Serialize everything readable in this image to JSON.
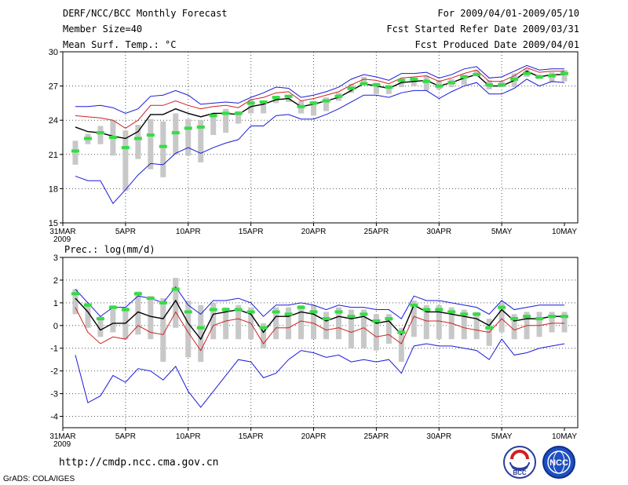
{
  "header": {
    "left": [
      "DERF/NCC/BCC Monthly Forecast",
      "Member Size=40",
      "Mean Surf. Temp.: °C"
    ],
    "right": [
      "For 2009/04/01-2009/05/10",
      "Fcst Started Refer Date 2009/03/31",
      "Fcst Produced Date 2009/04/01"
    ]
  },
  "footer": {
    "url": "http://cmdp.ncc.cma.gov.cn",
    "credit": "GrADS: COLA/IGES"
  },
  "logos": {
    "bcc": "BCC",
    "ncc": "NCC"
  },
  "colors": {
    "ensemble_mean": "#000000",
    "red_line": "#cc2222",
    "blue_line": "#1a1ad8",
    "green_mark": "#33dd44",
    "box": "#c8c8c8"
  },
  "chart_data": [
    {
      "type": "line",
      "title": "Mean Surf. Temp.: °C",
      "x_ticks": [
        {
          "day": 0,
          "label": "31MAR",
          "label2": "2009"
        },
        {
          "day": 5,
          "label": "5APR"
        },
        {
          "day": 10,
          "label": "10APR"
        },
        {
          "day": 15,
          "label": "15APR"
        },
        {
          "day": 20,
          "label": "20APR"
        },
        {
          "day": 25,
          "label": "25APR"
        },
        {
          "day": 30,
          "label": "30APR"
        },
        {
          "day": 35,
          "label": "5MAY"
        },
        {
          "day": 40,
          "label": "10MAY"
        }
      ],
      "ylim": [
        15,
        30
      ],
      "y_ticks": [
        15,
        18,
        21,
        24,
        27,
        30
      ],
      "grid": true,
      "days": [
        1,
        2,
        3,
        4,
        5,
        6,
        7,
        8,
        9,
        10,
        11,
        12,
        13,
        14,
        15,
        16,
        17,
        18,
        19,
        20,
        21,
        22,
        23,
        24,
        25,
        26,
        27,
        28,
        29,
        30,
        31,
        32,
        33,
        34,
        35,
        36,
        37,
        38,
        39,
        40
      ],
      "mean": [
        23.4,
        23.0,
        22.9,
        22.6,
        22.4,
        23.0,
        24.5,
        24.5,
        25.0,
        24.6,
        24.3,
        24.6,
        24.6,
        24.5,
        25.2,
        25.4,
        25.8,
        25.9,
        25.2,
        25.4,
        25.7,
        26.0,
        26.6,
        27.2,
        27.0,
        26.8,
        27.3,
        27.4,
        27.5,
        27.0,
        27.3,
        27.7,
        28.0,
        27.0,
        27.0,
        27.5,
        28.3,
        27.8,
        28.0,
        28.0
      ],
      "red": [
        24.4,
        24.3,
        24.2,
        24.0,
        23.3,
        24.0,
        25.3,
        25.3,
        25.7,
        25.3,
        25.0,
        25.2,
        25.3,
        25.1,
        25.8,
        26.0,
        26.4,
        26.5,
        25.7,
        25.9,
        26.2,
        26.5,
        27.1,
        27.6,
        27.5,
        27.2,
        27.7,
        27.8,
        27.9,
        27.4,
        27.7,
        28.1,
        28.4,
        27.4,
        27.4,
        27.9,
        28.6,
        28.2,
        28.3,
        28.3
      ],
      "blue_upper": [
        25.2,
        25.2,
        25.3,
        25.1,
        24.6,
        25.0,
        26.1,
        26.2,
        26.6,
        26.2,
        25.4,
        25.5,
        25.6,
        25.5,
        26.0,
        26.4,
        26.9,
        26.8,
        26.0,
        26.2,
        26.5,
        26.9,
        27.6,
        28.0,
        27.8,
        27.5,
        28.1,
        28.1,
        28.2,
        27.7,
        28.0,
        28.5,
        28.7,
        27.7,
        27.8,
        28.3,
        28.8,
        28.4,
        28.5,
        28.5
      ],
      "blue_lower": [
        19.1,
        18.7,
        18.7,
        16.7,
        17.9,
        19.2,
        20.2,
        20.1,
        21.1,
        21.6,
        21.1,
        21.6,
        22.0,
        22.3,
        23.5,
        23.5,
        24.4,
        24.5,
        24.1,
        24.1,
        24.5,
        25.0,
        25.6,
        26.2,
        26.2,
        26.0,
        26.4,
        26.6,
        26.6,
        25.9,
        26.5,
        27.0,
        27.3,
        26.3,
        26.3,
        26.8,
        27.6,
        27.0,
        27.4,
        27.3
      ],
      "box_high": [
        22.2,
        22.8,
        23.5,
        24.0,
        23.1,
        23.6,
        24.1,
        23.9,
        24.6,
        24.1,
        24.0,
        24.6,
        25.0,
        24.8,
        25.8,
        25.5,
        26.1,
        26.2,
        25.7,
        25.7,
        26.0,
        26.4,
        27.2,
        27.8,
        27.3,
        27.1,
        27.6,
        27.7,
        27.9,
        27.5,
        27.6,
        28.0,
        28.4,
        27.5,
        27.4,
        28.1,
        28.5,
        28.0,
        28.2,
        28.4
      ],
      "box_low": [
        20.1,
        21.9,
        21.9,
        20.9,
        17.8,
        20.6,
        19.7,
        19.0,
        21.0,
        20.9,
        20.3,
        22.7,
        22.9,
        23.7,
        24.6,
        24.6,
        25.5,
        25.6,
        24.6,
        24.4,
        24.8,
        25.7,
        26.4,
        27.1,
        26.3,
        26.3,
        26.9,
        27.0,
        26.6,
        26.7,
        26.9,
        27.1,
        27.9,
        26.7,
        26.9,
        26.9,
        27.8,
        27.6,
        27.3,
        27.4
      ],
      "obs": [
        21.3,
        22.4,
        22.9,
        22.5,
        21.6,
        22.4,
        22.7,
        21.7,
        22.9,
        23.3,
        23.4,
        24.4,
        24.6,
        24.6,
        25.5,
        25.6,
        26.0,
        26.1,
        25.2,
        25.5,
        25.7,
        26.1,
        26.8,
        27.2,
        27.1,
        26.9,
        27.5,
        27.6,
        27.4,
        27.0,
        27.3,
        27.8,
        28.0,
        27.1,
        27.1,
        27.6,
        28.1,
        27.8,
        27.9,
        28.1
      ]
    },
    {
      "type": "line",
      "title": "Prec.: log(mm/d)",
      "x_ticks": [
        {
          "day": 0,
          "label": "31MAR",
          "label2": "2009"
        },
        {
          "day": 5,
          "label": "5APR"
        },
        {
          "day": 10,
          "label": "10APR"
        },
        {
          "day": 15,
          "label": "15APR"
        },
        {
          "day": 20,
          "label": "20APR"
        },
        {
          "day": 25,
          "label": "25APR"
        },
        {
          "day": 30,
          "label": "30APR"
        },
        {
          "day": 35,
          "label": "5MAY"
        },
        {
          "day": 40,
          "label": "10MAY"
        }
      ],
      "ylim": [
        -4.5,
        3
      ],
      "y_ticks": [
        -4,
        -3,
        -2,
        -1,
        0,
        1,
        2,
        3
      ],
      "grid": true,
      "days": [
        1,
        2,
        3,
        4,
        5,
        6,
        7,
        8,
        9,
        10,
        11,
        12,
        13,
        14,
        15,
        16,
        17,
        18,
        19,
        20,
        21,
        22,
        23,
        24,
        25,
        26,
        27,
        28,
        29,
        30,
        31,
        32,
        33,
        34,
        35,
        36,
        37,
        38,
        39,
        40
      ],
      "mean": [
        1.2,
        0.6,
        -0.2,
        0.1,
        0.1,
        0.6,
        0.4,
        0.3,
        1.1,
        0.1,
        -0.6,
        0.5,
        0.6,
        0.7,
        0.5,
        -0.3,
        0.4,
        0.4,
        0.6,
        0.5,
        0.2,
        0.4,
        0.3,
        0.4,
        0.1,
        0.2,
        -0.4,
        0.9,
        0.6,
        0.6,
        0.5,
        0.4,
        0.3,
        0.0,
        0.7,
        0.2,
        0.3,
        0.3,
        0.4,
        0.4
      ],
      "red": [
        0.8,
        -0.3,
        -0.8,
        -0.5,
        -0.6,
        0.0,
        -0.3,
        -0.4,
        0.6,
        -0.3,
        -1.1,
        0.0,
        0.2,
        0.3,
        0.1,
        -0.8,
        -0.1,
        -0.1,
        0.2,
        0.1,
        -0.2,
        -0.1,
        -0.3,
        -0.1,
        -0.5,
        -0.4,
        -0.8,
        0.4,
        0.2,
        0.2,
        0.1,
        -0.1,
        -0.2,
        -0.3,
        0.3,
        -0.2,
        0.0,
        0.0,
        0.1,
        0.1
      ],
      "blue_upper": [
        1.6,
        1.0,
        0.4,
        0.8,
        0.8,
        1.3,
        1.2,
        1.0,
        1.7,
        0.9,
        0.5,
        1.1,
        1.1,
        1.2,
        1.0,
        0.4,
        0.9,
        0.9,
        1.0,
        0.9,
        0.7,
        0.9,
        0.8,
        0.8,
        0.7,
        0.7,
        0.3,
        1.3,
        1.1,
        1.1,
        1.0,
        0.9,
        0.8,
        0.5,
        1.1,
        0.7,
        0.8,
        0.9,
        0.9,
        0.9
      ],
      "blue_lower": [
        -1.3,
        -3.4,
        -3.1,
        -2.2,
        -2.5,
        -1.9,
        -2.0,
        -2.4,
        -1.8,
        -2.9,
        -3.6,
        -2.9,
        -2.2,
        -1.5,
        -1.6,
        -2.3,
        -2.1,
        -1.5,
        -1.1,
        -1.2,
        -1.4,
        -1.3,
        -1.6,
        -1.5,
        -1.6,
        -1.5,
        -2.1,
        -0.9,
        -0.8,
        -0.9,
        -0.9,
        -1.0,
        -1.1,
        -1.5,
        -0.6,
        -1.3,
        -1.2,
        -1.0,
        -0.9,
        -0.8
      ],
      "box_high": [
        1.6,
        1.0,
        0.4,
        0.9,
        0.8,
        1.5,
        1.3,
        1.2,
        2.1,
        1.1,
        0.9,
        1.0,
        0.8,
        0.9,
        0.8,
        0.1,
        0.8,
        0.8,
        0.9,
        0.9,
        0.6,
        0.8,
        0.7,
        0.7,
        0.5,
        0.5,
        -0.1,
        1.1,
        0.9,
        0.9,
        0.8,
        0.7,
        0.6,
        0.3,
        1.0,
        0.5,
        0.6,
        0.6,
        0.6,
        0.6
      ],
      "box_low": [
        0.5,
        -0.1,
        -0.5,
        -0.3,
        -0.6,
        -0.4,
        -0.6,
        -1.6,
        -0.1,
        -1.4,
        -1.6,
        -0.6,
        -0.6,
        -0.6,
        -0.6,
        -1.0,
        -0.6,
        -0.6,
        -0.6,
        -0.6,
        -0.6,
        -0.6,
        -1.0,
        -1.0,
        -1.1,
        -0.8,
        -1.6,
        -0.5,
        -0.6,
        -0.6,
        -0.6,
        -0.6,
        -0.6,
        -0.9,
        -0.3,
        -0.6,
        -0.6,
        -0.5,
        -0.3,
        -0.3
      ],
      "obs": [
        1.4,
        0.9,
        0.3,
        0.8,
        0.7,
        1.4,
        1.2,
        1.0,
        1.6,
        0.6,
        -0.1,
        0.7,
        0.7,
        0.7,
        0.6,
        -0.1,
        0.6,
        0.5,
        0.8,
        0.6,
        0.3,
        0.6,
        0.4,
        0.5,
        0.2,
        0.3,
        -0.3,
        0.9,
        0.7,
        0.7,
        0.6,
        0.5,
        0.5,
        -0.1,
        0.8,
        0.3,
        0.4,
        0.3,
        0.4,
        0.4
      ]
    }
  ]
}
